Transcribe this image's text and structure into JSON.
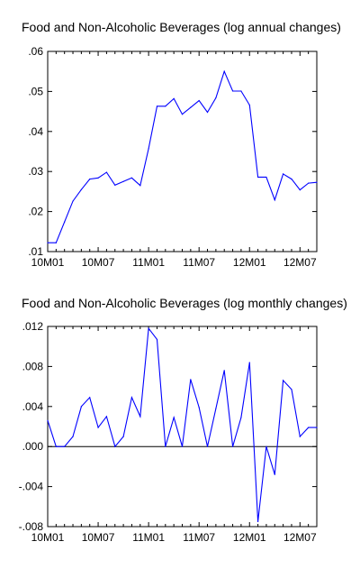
{
  "chart_data": [
    {
      "type": "line",
      "title": "Food and Non-Alcoholic Beverages (log annual changes)",
      "xlabel": "",
      "ylabel": "",
      "ylim": [
        0.01,
        0.06
      ],
      "yticks": [
        ".01",
        ".02",
        ".03",
        ".04",
        ".05",
        ".06"
      ],
      "ytick_values": [
        0.01,
        0.02,
        0.03,
        0.04,
        0.05,
        0.06
      ],
      "xticks": [
        "10M01",
        "10M07",
        "11M01",
        "11M07",
        "12M01",
        "12M07"
      ],
      "xtick_indices": [
        0,
        6,
        12,
        18,
        24,
        30
      ],
      "grid": false,
      "series": [
        {
          "color": "#0000ff",
          "x": [
            "10M01",
            "10M02",
            "10M03",
            "10M04",
            "10M05",
            "10M06",
            "10M07",
            "10M08",
            "10M09",
            "10M10",
            "10M11",
            "10M12",
            "11M01",
            "11M02",
            "11M03",
            "11M04",
            "11M05",
            "11M06",
            "11M07",
            "11M08",
            "11M09",
            "11M10",
            "11M11",
            "11M12",
            "12M01",
            "12M02",
            "12M03",
            "12M04",
            "12M05",
            "12M06",
            "12M07",
            "12M08",
            "12M09"
          ],
          "values": [
            0.0122,
            0.0122,
            0.0174,
            0.0226,
            0.0255,
            0.0281,
            0.0284,
            0.0298,
            0.0266,
            0.0275,
            0.0284,
            0.0265,
            0.0357,
            0.0463,
            0.0463,
            0.0482,
            0.0443,
            0.046,
            0.0477,
            0.0448,
            0.0484,
            0.055,
            0.0501,
            0.0501,
            0.0466,
            0.0286,
            0.0286,
            0.0229,
            0.0294,
            0.0281,
            0.0254,
            0.0271,
            0.0273
          ]
        }
      ]
    },
    {
      "type": "line",
      "title": "Food and Non-Alcoholic Beverages (log monthly changes)",
      "xlabel": "",
      "ylabel": "",
      "ylim": [
        -0.008,
        0.012
      ],
      "yticks": [
        "-.008",
        "-.004",
        ".000",
        ".004",
        ".008",
        ".012"
      ],
      "ytick_values": [
        -0.008,
        -0.004,
        0.0,
        0.004,
        0.008,
        0.012
      ],
      "xticks": [
        "10M01",
        "10M07",
        "11M01",
        "11M07",
        "12M01",
        "12M07"
      ],
      "xtick_indices": [
        0,
        6,
        12,
        18,
        24,
        30
      ],
      "zero_line": true,
      "grid": false,
      "series": [
        {
          "color": "#0000ff",
          "x": [
            "10M01",
            "10M02",
            "10M03",
            "10M04",
            "10M05",
            "10M06",
            "10M07",
            "10M08",
            "10M09",
            "10M10",
            "10M11",
            "10M12",
            "11M01",
            "11M02",
            "11M03",
            "11M04",
            "11M05",
            "11M06",
            "11M07",
            "11M08",
            "11M09",
            "11M10",
            "11M11",
            "11M12",
            "12M01",
            "12M02",
            "12M03",
            "12M04",
            "12M05",
            "12M06",
            "12M07",
            "12M08",
            "12M09"
          ],
          "values": [
            0.0026,
            0.0,
            0.0,
            0.001,
            0.004,
            0.0049,
            0.0019,
            0.003,
            0.0,
            0.001,
            0.0049,
            0.003,
            0.0118,
            0.0107,
            0.0,
            0.0029,
            0.0,
            0.0067,
            0.0039,
            0.0,
            0.0038,
            0.0076,
            0.0,
            0.0029,
            0.0084,
            -0.0075,
            0.0,
            -0.0028,
            0.0066,
            0.0057,
            0.001,
            0.0019,
            0.0019
          ]
        }
      ]
    }
  ]
}
